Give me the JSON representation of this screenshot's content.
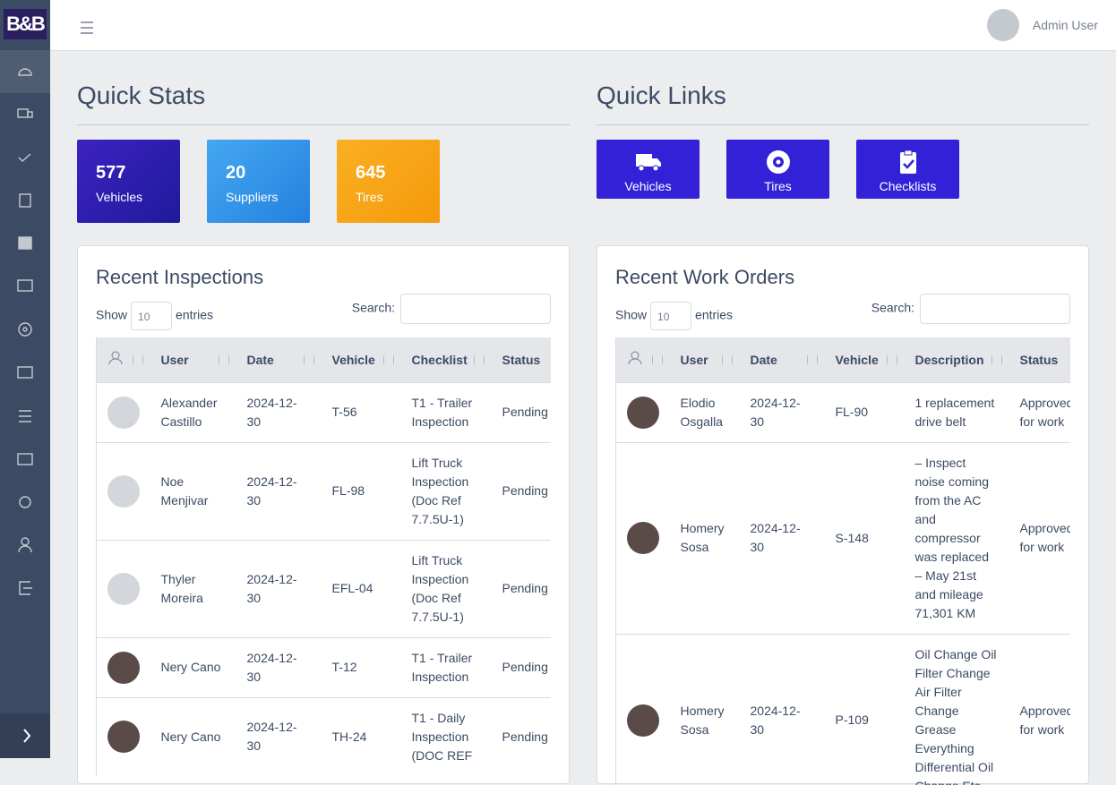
{
  "header": {
    "logo": "B&B",
    "user_name": "Admin User"
  },
  "quick_stats": {
    "title": "Quick Stats",
    "items": [
      {
        "value": 577,
        "label": "Vehicles"
      },
      {
        "value": 20,
        "label": "Suppliers"
      },
      {
        "value": 645,
        "label": "Tires"
      }
    ]
  },
  "quick_links": {
    "title": "Quick Links",
    "items": [
      "Vehicles",
      "Tires",
      "Checklists"
    ]
  },
  "inspections": {
    "title": "Recent Inspections",
    "show": "Show",
    "page_size": "10",
    "entries": "entries",
    "search": "Search:",
    "columns": [
      "User",
      "Date",
      "Vehicle",
      "Checklist",
      "Status"
    ],
    "rows": [
      [
        "Alexander Castillo",
        "2024-12-30",
        "T-56",
        "T1 - Trailer Inspection",
        "Pending"
      ],
      [
        "Noe Menjivar",
        "2024-12-30",
        "FL-98",
        "Lift Truck Inspection (Doc Ref 7.7.5U-1)",
        "Pending"
      ],
      [
        "Thyler Moreira",
        "2024-12-30",
        "EFL-04",
        "Lift Truck Inspection (Doc Ref 7.7.5U-1)",
        "Pending"
      ],
      [
        "Nery Cano",
        "2024-12-30",
        "T-12",
        "T1 - Trailer Inspection",
        "Pending"
      ],
      [
        "Nery Cano",
        "2024-12-30",
        "TH-24",
        "T1 - Daily Inspection (DOC REF",
        "Pending"
      ]
    ]
  },
  "work_orders": {
    "title": "Recent Work Orders",
    "show": "Show",
    "page_size": "10",
    "entries": "entries",
    "search": "Search:",
    "columns": [
      "User",
      "Date",
      "Vehicle",
      "Description",
      "Status"
    ],
    "rows": [
      [
        "Elodio Osgalla",
        "2024-12-30",
        "FL-90",
        "1 replacement drive belt",
        "Approved for work"
      ],
      [
        "Homery Sosa",
        "2024-12-30",
        "S-148",
        "– Inspect noise coming from the AC and compressor was replaced – May 21st and mileage 71,301 KM",
        "Approved for work"
      ],
      [
        "Homery Sosa",
        "2024-12-30",
        "P-109",
        "Oil Change Oil Filter Change Air Filter Change Grease Everything Differential Oil Change Etc.",
        "Approved for work"
      ]
    ]
  }
}
